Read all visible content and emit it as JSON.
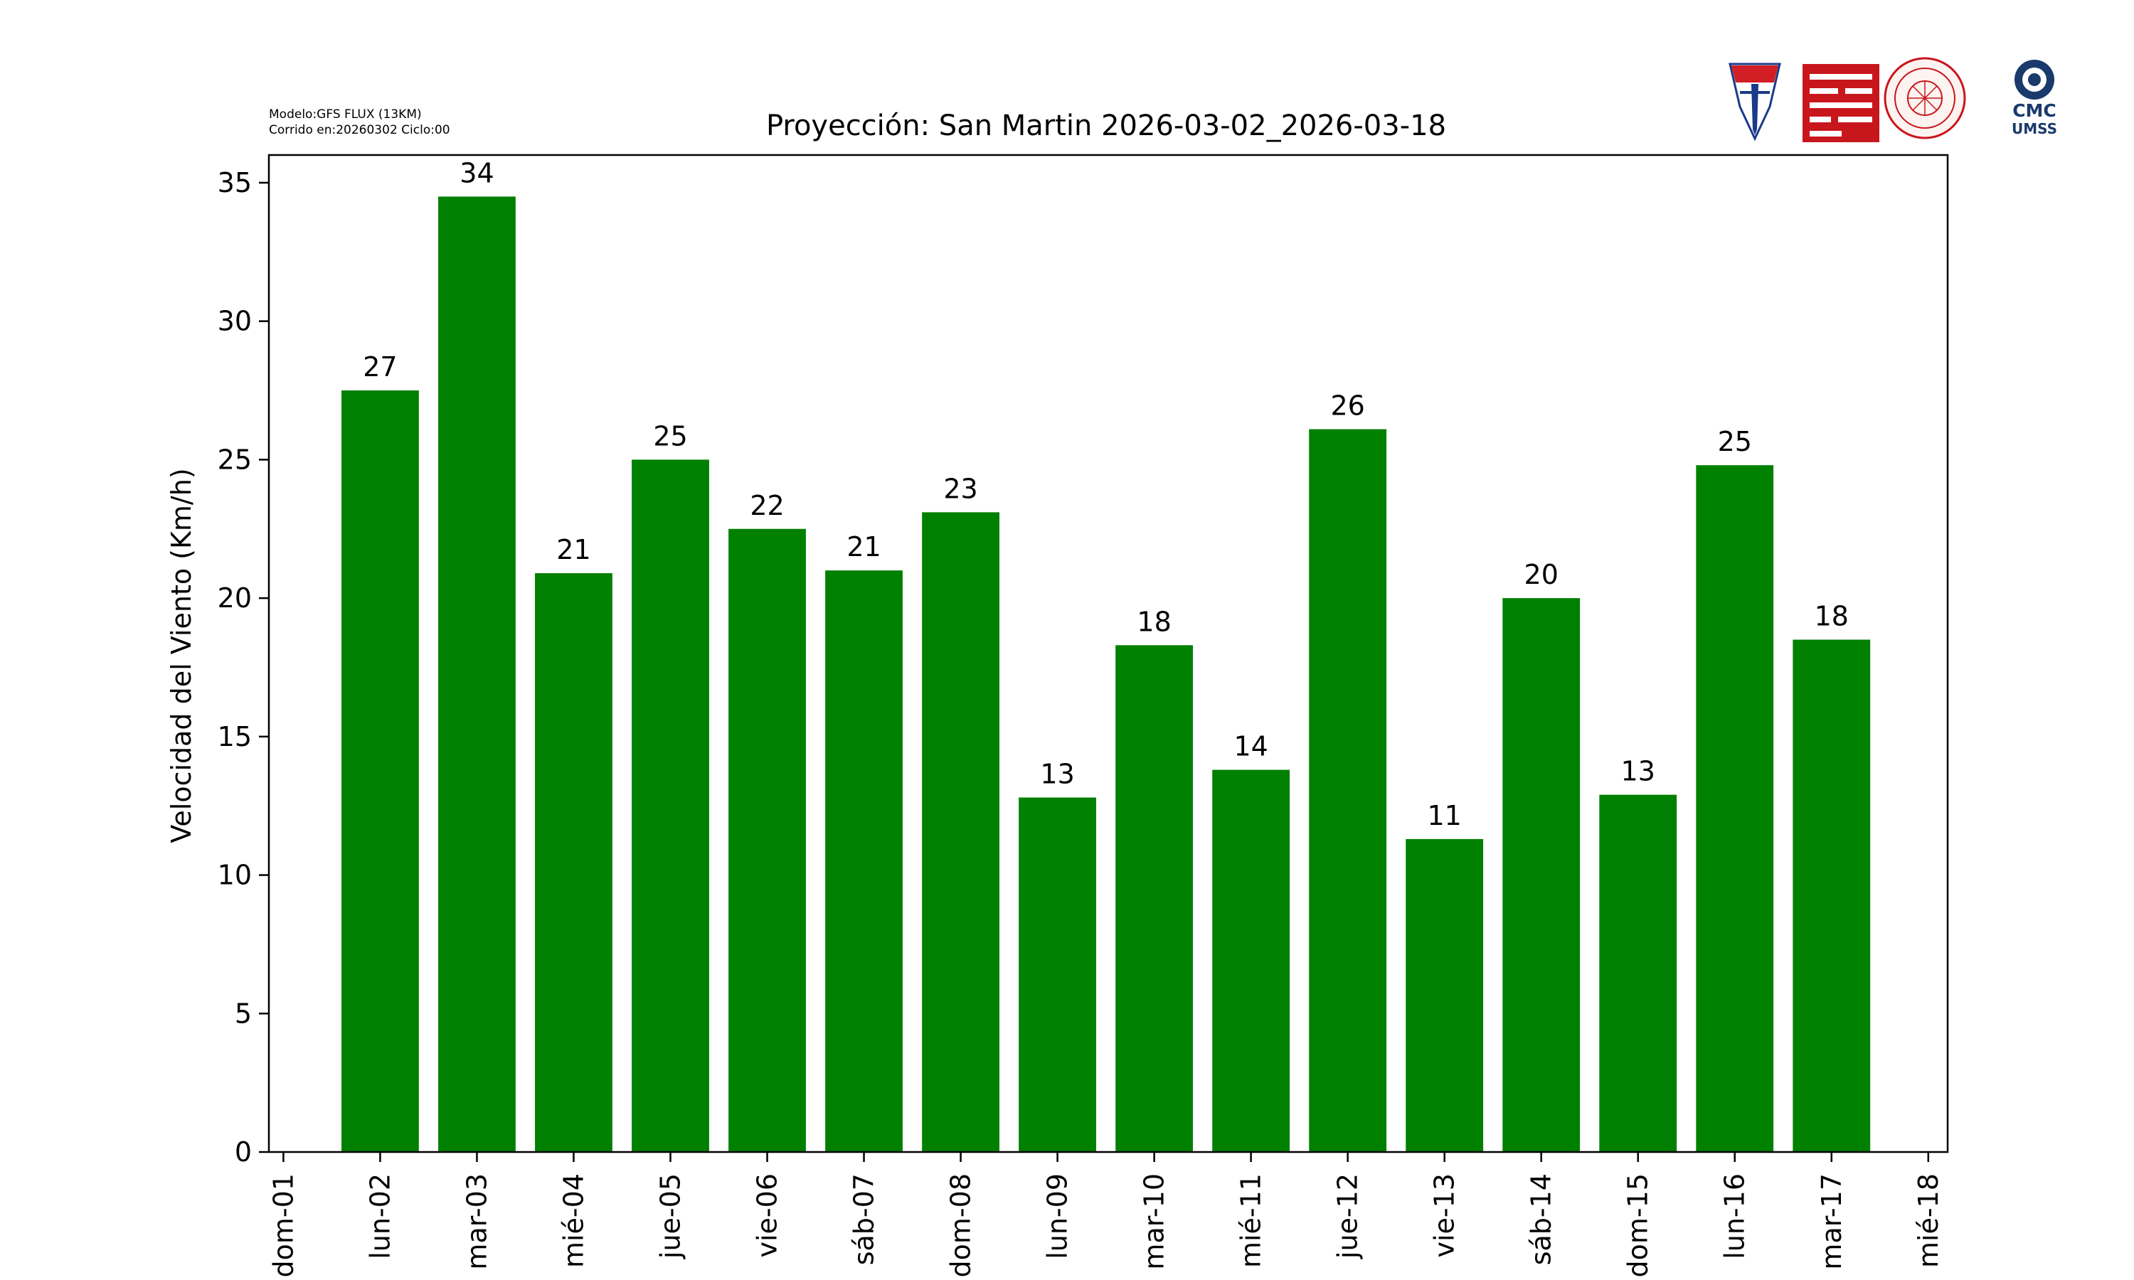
{
  "meta": {
    "model": "Modelo:GFS FLUX (13KM)",
    "run": "Corrido en:20260302 Ciclo:00"
  },
  "logos": [
    {
      "name": "umss-shield-logo",
      "text": "UMSS"
    },
    {
      "name": "faculty-red-logo"
    },
    {
      "name": "physics-department-seal-logo"
    },
    {
      "name": "cmc-umss-logo",
      "text": "CMC UMSS"
    }
  ],
  "colors": {
    "bar": "#008000",
    "axis": "#000000"
  },
  "chart_data": {
    "type": "bar",
    "title": "Proyección: San Martin  2026-03-02_2026-03-18",
    "xlabel": "",
    "ylabel": "Velocidad del Viento (Km/h)",
    "x_ticks": [
      "dom-01",
      "lun-02",
      "mar-03",
      "mié-04",
      "jue-05",
      "vie-06",
      "sáb-07",
      "dom-08",
      "lun-09",
      "mar-10",
      "mié-11",
      "jue-12",
      "vie-13",
      "sáb-14",
      "dom-15",
      "lun-16",
      "mar-17",
      "mié-18"
    ],
    "categories": [
      "lun-02",
      "mar-03",
      "mié-04",
      "jue-05",
      "vie-06",
      "sáb-07",
      "dom-08",
      "lun-09",
      "mar-10",
      "mié-11",
      "jue-12",
      "vie-13",
      "sáb-14",
      "dom-15",
      "lun-16",
      "mar-17"
    ],
    "values": [
      27.5,
      34.5,
      20.9,
      25.0,
      22.5,
      21.0,
      23.1,
      12.8,
      18.3,
      13.8,
      26.1,
      11.3,
      20.0,
      12.9,
      24.8,
      18.5
    ],
    "labels": [
      "27",
      "34",
      "21",
      "25",
      "22",
      "21",
      "23",
      "13",
      "18",
      "14",
      "26",
      "11",
      "20",
      "13",
      "25",
      "18"
    ],
    "ylim": [
      0,
      36
    ],
    "yticks": [
      0,
      5,
      10,
      15,
      20,
      25,
      30,
      35
    ],
    "grid": false,
    "legend": false
  }
}
